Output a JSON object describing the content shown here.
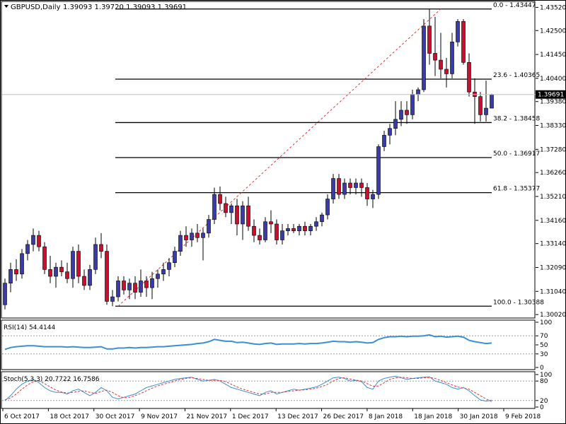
{
  "header": {
    "symbol": "GBPUSD,Daily",
    "ohlc": "1.39093 1.39720 1.39093 1.39691"
  },
  "colors": {
    "bull_candle": "#3b3ba8",
    "bear_candle": "#c8102e",
    "fib_line": "#000000",
    "trend_line": "#e8303a",
    "rsi_line": "#3b8fd6",
    "stoch_main": "#3b8fd6",
    "stoch_signal": "#e8303a",
    "price_tag_bg": "#000000",
    "price_tag_text": "#ffffff"
  },
  "chart_data": [
    {
      "type": "candlestick",
      "panel": "price",
      "symbol": "GBPUSD",
      "timeframe": "Daily",
      "ylim": [
        1.299,
        1.4375
      ],
      "y_ticks": [
        "1.43520",
        "1.42500",
        "1.41450",
        "1.40400",
        "1.39380",
        "1.38330",
        "1.37280",
        "1.36260",
        "1.35210",
        "1.34160",
        "1.33140",
        "1.32090",
        "1.31040",
        "1.30020"
      ],
      "current_price": "1.39691",
      "x_tick_labels": [
        "6 Oct 2017",
        "18 Oct 2017",
        "30 Oct 2017",
        "9 Nov 2017",
        "21 Nov 2017",
        "1 Dec 2017",
        "13 Dec 2017",
        "26 Dec 2017",
        "8 Jan 2018",
        "18 Jan 2018",
        "30 Jan 2018",
        "9 Feb 2018"
      ],
      "fibonacci_levels": [
        {
          "label": "0.0 - 1.43447",
          "value": 1.43447
        },
        {
          "label": "23.6 - 1.40365",
          "value": 1.40365
        },
        {
          "label": "38.2 - 1.38458",
          "value": 1.38458
        },
        {
          "label": "50.0 - 1.36917",
          "value": 1.36917
        },
        {
          "label": "61.8 - 1.35377",
          "value": 1.35377
        },
        {
          "label": "100.0 - 1.30388",
          "value": 1.30388
        }
      ],
      "trend_line": {
        "from_index": 20,
        "from_price": 1.3039,
        "to_index": 77,
        "to_price": 1.4345
      },
      "candles": [
        {
          "o": 1.3045,
          "h": 1.316,
          "l": 1.3025,
          "c": 1.314
        },
        {
          "o": 1.314,
          "h": 1.323,
          "l": 1.31,
          "c": 1.32
        },
        {
          "o": 1.32,
          "h": 1.3245,
          "l": 1.315,
          "c": 1.318
        },
        {
          "o": 1.318,
          "h": 1.329,
          "l": 1.316,
          "c": 1.327
        },
        {
          "o": 1.327,
          "h": 1.333,
          "l": 1.324,
          "c": 1.331
        },
        {
          "o": 1.331,
          "h": 1.338,
          "l": 1.328,
          "c": 1.335
        },
        {
          "o": 1.335,
          "h": 1.337,
          "l": 1.328,
          "c": 1.33
        },
        {
          "o": 1.33,
          "h": 1.332,
          "l": 1.318,
          "c": 1.32
        },
        {
          "o": 1.32,
          "h": 1.326,
          "l": 1.314,
          "c": 1.317
        },
        {
          "o": 1.317,
          "h": 1.323,
          "l": 1.312,
          "c": 1.321
        },
        {
          "o": 1.321,
          "h": 1.324,
          "l": 1.317,
          "c": 1.319
        },
        {
          "o": 1.319,
          "h": 1.323,
          "l": 1.314,
          "c": 1.316
        },
        {
          "o": 1.316,
          "h": 1.33,
          "l": 1.312,
          "c": 1.328
        },
        {
          "o": 1.328,
          "h": 1.331,
          "l": 1.314,
          "c": 1.317
        },
        {
          "o": 1.317,
          "h": 1.32,
          "l": 1.311,
          "c": 1.313
        },
        {
          "o": 1.313,
          "h": 1.322,
          "l": 1.311,
          "c": 1.32
        },
        {
          "o": 1.32,
          "h": 1.334,
          "l": 1.318,
          "c": 1.331
        },
        {
          "o": 1.331,
          "h": 1.336,
          "l": 1.325,
          "c": 1.328
        },
        {
          "o": 1.328,
          "h": 1.331,
          "l": 1.3045,
          "c": 1.306
        },
        {
          "o": 1.306,
          "h": 1.311,
          "l": 1.3039,
          "c": 1.308
        },
        {
          "o": 1.308,
          "h": 1.317,
          "l": 1.306,
          "c": 1.315
        },
        {
          "o": 1.315,
          "h": 1.317,
          "l": 1.309,
          "c": 1.311
        },
        {
          "o": 1.311,
          "h": 1.316,
          "l": 1.307,
          "c": 1.314
        },
        {
          "o": 1.314,
          "h": 1.317,
          "l": 1.307,
          "c": 1.31
        },
        {
          "o": 1.31,
          "h": 1.32,
          "l": 1.308,
          "c": 1.315
        },
        {
          "o": 1.315,
          "h": 1.317,
          "l": 1.308,
          "c": 1.312
        },
        {
          "o": 1.312,
          "h": 1.319,
          "l": 1.307,
          "c": 1.316
        },
        {
          "o": 1.316,
          "h": 1.32,
          "l": 1.312,
          "c": 1.318
        },
        {
          "o": 1.318,
          "h": 1.323,
          "l": 1.315,
          "c": 1.32
        },
        {
          "o": 1.32,
          "h": 1.325,
          "l": 1.317,
          "c": 1.323
        },
        {
          "o": 1.323,
          "h": 1.33,
          "l": 1.321,
          "c": 1.328
        },
        {
          "o": 1.328,
          "h": 1.337,
          "l": 1.326,
          "c": 1.335
        },
        {
          "o": 1.335,
          "h": 1.339,
          "l": 1.33,
          "c": 1.333
        },
        {
          "o": 1.333,
          "h": 1.338,
          "l": 1.33,
          "c": 1.336
        },
        {
          "o": 1.336,
          "h": 1.34,
          "l": 1.332,
          "c": 1.334
        },
        {
          "o": 1.334,
          "h": 1.338,
          "l": 1.324,
          "c": 1.336
        },
        {
          "o": 1.336,
          "h": 1.344,
          "l": 1.334,
          "c": 1.342
        },
        {
          "o": 1.342,
          "h": 1.356,
          "l": 1.34,
          "c": 1.353
        },
        {
          "o": 1.353,
          "h": 1.3565,
          "l": 1.346,
          "c": 1.349
        },
        {
          "o": 1.349,
          "h": 1.352,
          "l": 1.343,
          "c": 1.345
        },
        {
          "o": 1.345,
          "h": 1.349,
          "l": 1.34,
          "c": 1.348
        },
        {
          "o": 1.348,
          "h": 1.351,
          "l": 1.335,
          "c": 1.34
        },
        {
          "o": 1.34,
          "h": 1.35,
          "l": 1.333,
          "c": 1.348
        },
        {
          "o": 1.348,
          "h": 1.352,
          "l": 1.337,
          "c": 1.339
        },
        {
          "o": 1.339,
          "h": 1.342,
          "l": 1.332,
          "c": 1.335
        },
        {
          "o": 1.335,
          "h": 1.338,
          "l": 1.331,
          "c": 1.333
        },
        {
          "o": 1.333,
          "h": 1.343,
          "l": 1.332,
          "c": 1.341
        },
        {
          "o": 1.341,
          "h": 1.346,
          "l": 1.336,
          "c": 1.34
        },
        {
          "o": 1.34,
          "h": 1.342,
          "l": 1.331,
          "c": 1.333
        },
        {
          "o": 1.333,
          "h": 1.34,
          "l": 1.331,
          "c": 1.337
        },
        {
          "o": 1.337,
          "h": 1.34,
          "l": 1.335,
          "c": 1.338
        },
        {
          "o": 1.338,
          "h": 1.34,
          "l": 1.336,
          "c": 1.337
        },
        {
          "o": 1.337,
          "h": 1.34,
          "l": 1.335,
          "c": 1.339
        },
        {
          "o": 1.339,
          "h": 1.341,
          "l": 1.335,
          "c": 1.337
        },
        {
          "o": 1.337,
          "h": 1.34,
          "l": 1.335,
          "c": 1.339
        },
        {
          "o": 1.339,
          "h": 1.343,
          "l": 1.337,
          "c": 1.341
        },
        {
          "o": 1.341,
          "h": 1.345,
          "l": 1.339,
          "c": 1.344
        },
        {
          "o": 1.344,
          "h": 1.353,
          "l": 1.342,
          "c": 1.351
        },
        {
          "o": 1.351,
          "h": 1.362,
          "l": 1.349,
          "c": 1.36
        },
        {
          "o": 1.36,
          "h": 1.362,
          "l": 1.351,
          "c": 1.353
        },
        {
          "o": 1.353,
          "h": 1.36,
          "l": 1.351,
          "c": 1.358
        },
        {
          "o": 1.358,
          "h": 1.36,
          "l": 1.353,
          "c": 1.356
        },
        {
          "o": 1.356,
          "h": 1.36,
          "l": 1.353,
          "c": 1.358
        },
        {
          "o": 1.358,
          "h": 1.36,
          "l": 1.352,
          "c": 1.356
        },
        {
          "o": 1.356,
          "h": 1.358,
          "l": 1.348,
          "c": 1.351
        },
        {
          "o": 1.351,
          "h": 1.355,
          "l": 1.347,
          "c": 1.353
        },
        {
          "o": 1.353,
          "h": 1.375,
          "l": 1.351,
          "c": 1.374
        },
        {
          "o": 1.374,
          "h": 1.381,
          "l": 1.372,
          "c": 1.379
        },
        {
          "o": 1.379,
          "h": 1.384,
          "l": 1.375,
          "c": 1.382
        },
        {
          "o": 1.382,
          "h": 1.394,
          "l": 1.379,
          "c": 1.386
        },
        {
          "o": 1.386,
          "h": 1.394,
          "l": 1.383,
          "c": 1.39
        },
        {
          "o": 1.39,
          "h": 1.394,
          "l": 1.384,
          "c": 1.388
        },
        {
          "o": 1.388,
          "h": 1.399,
          "l": 1.386,
          "c": 1.397
        },
        {
          "o": 1.397,
          "h": 1.4,
          "l": 1.394,
          "c": 1.399
        },
        {
          "o": 1.399,
          "h": 1.43,
          "l": 1.398,
          "c": 1.427
        },
        {
          "o": 1.427,
          "h": 1.4345,
          "l": 1.41,
          "c": 1.415
        },
        {
          "o": 1.415,
          "h": 1.431,
          "l": 1.405,
          "c": 1.412
        },
        {
          "o": 1.412,
          "h": 1.424,
          "l": 1.404,
          "c": 1.408
        },
        {
          "o": 1.408,
          "h": 1.413,
          "l": 1.4,
          "c": 1.406
        },
        {
          "o": 1.406,
          "h": 1.424,
          "l": 1.404,
          "c": 1.42
        },
        {
          "o": 1.42,
          "h": 1.43,
          "l": 1.418,
          "c": 1.429
        },
        {
          "o": 1.429,
          "h": 1.43,
          "l": 1.41,
          "c": 1.411
        },
        {
          "o": 1.411,
          "h": 1.415,
          "l": 1.396,
          "c": 1.398
        },
        {
          "o": 1.398,
          "h": 1.404,
          "l": 1.384,
          "c": 1.396
        },
        {
          "o": 1.396,
          "h": 1.398,
          "l": 1.385,
          "c": 1.388
        },
        {
          "o": 1.388,
          "h": 1.403,
          "l": 1.385,
          "c": 1.3909
        },
        {
          "o": 1.3909,
          "h": 1.3972,
          "l": 1.3909,
          "c": 1.3969
        }
      ]
    },
    {
      "type": "line",
      "panel": "rsi",
      "label": "RSI(14) 54.4144",
      "ylim": [
        0,
        100
      ],
      "y_ticks": [
        "100",
        "70",
        "50",
        "30",
        "0"
      ],
      "values": [
        40,
        44,
        46,
        47,
        48,
        48,
        47,
        46,
        46,
        46,
        46,
        45,
        46,
        45,
        44,
        44,
        45,
        46,
        41,
        41,
        43,
        43,
        44,
        43,
        44,
        44,
        45,
        46,
        46,
        47,
        48,
        49,
        50,
        51,
        53,
        54,
        57,
        62,
        60,
        58,
        58,
        55,
        56,
        54,
        52,
        51,
        53,
        54,
        51,
        52,
        52,
        52,
        53,
        52,
        53,
        53,
        54,
        56,
        58,
        57,
        57,
        56,
        57,
        56,
        54,
        55,
        62,
        66,
        68,
        68,
        69,
        68,
        69,
        69,
        70,
        72,
        68,
        69,
        67,
        68,
        69,
        67,
        60,
        57,
        55,
        53,
        54
      ]
    },
    {
      "type": "line",
      "panel": "stochastic",
      "label": "Stoch(5,3,3) 20.7722 16.7586",
      "ylim": [
        0,
        100
      ],
      "y_ticks": [
        "100",
        "80",
        "20",
        "0"
      ],
      "series": [
        {
          "name": "main",
          "values": [
            20,
            35,
            55,
            70,
            80,
            85,
            75,
            60,
            50,
            45,
            45,
            40,
            50,
            55,
            45,
            35,
            45,
            60,
            50,
            30,
            25,
            30,
            35,
            40,
            50,
            60,
            65,
            70,
            75,
            80,
            85,
            88,
            90,
            92,
            85,
            80,
            82,
            85,
            80,
            70,
            60,
            55,
            50,
            45,
            40,
            35,
            45,
            50,
            40,
            45,
            50,
            55,
            52,
            55,
            58,
            62,
            70,
            80,
            90,
            92,
            88,
            80,
            82,
            78,
            60,
            55,
            80,
            88,
            92,
            95,
            90,
            85,
            88,
            90,
            92,
            93,
            80,
            75,
            70,
            60,
            55,
            60,
            50,
            35,
            22,
            18,
            21
          ]
        },
        {
          "name": "signal",
          "values": [
            22,
            28,
            40,
            55,
            68,
            78,
            80,
            72,
            62,
            52,
            46,
            43,
            45,
            48,
            50,
            45,
            42,
            48,
            52,
            45,
            35,
            28,
            30,
            35,
            42,
            50,
            58,
            65,
            70,
            75,
            80,
            85,
            88,
            90,
            88,
            85,
            82,
            82,
            82,
            78,
            70,
            62,
            55,
            50,
            45,
            40,
            40,
            45,
            45,
            45,
            48,
            50,
            52,
            53,
            55,
            58,
            63,
            70,
            80,
            88,
            90,
            86,
            83,
            80,
            72,
            64,
            65,
            75,
            85,
            90,
            92,
            90,
            88,
            88,
            90,
            91,
            88,
            82,
            75,
            68,
            62,
            58,
            55,
            45,
            35,
            25,
            17
          ]
        }
      ]
    }
  ]
}
